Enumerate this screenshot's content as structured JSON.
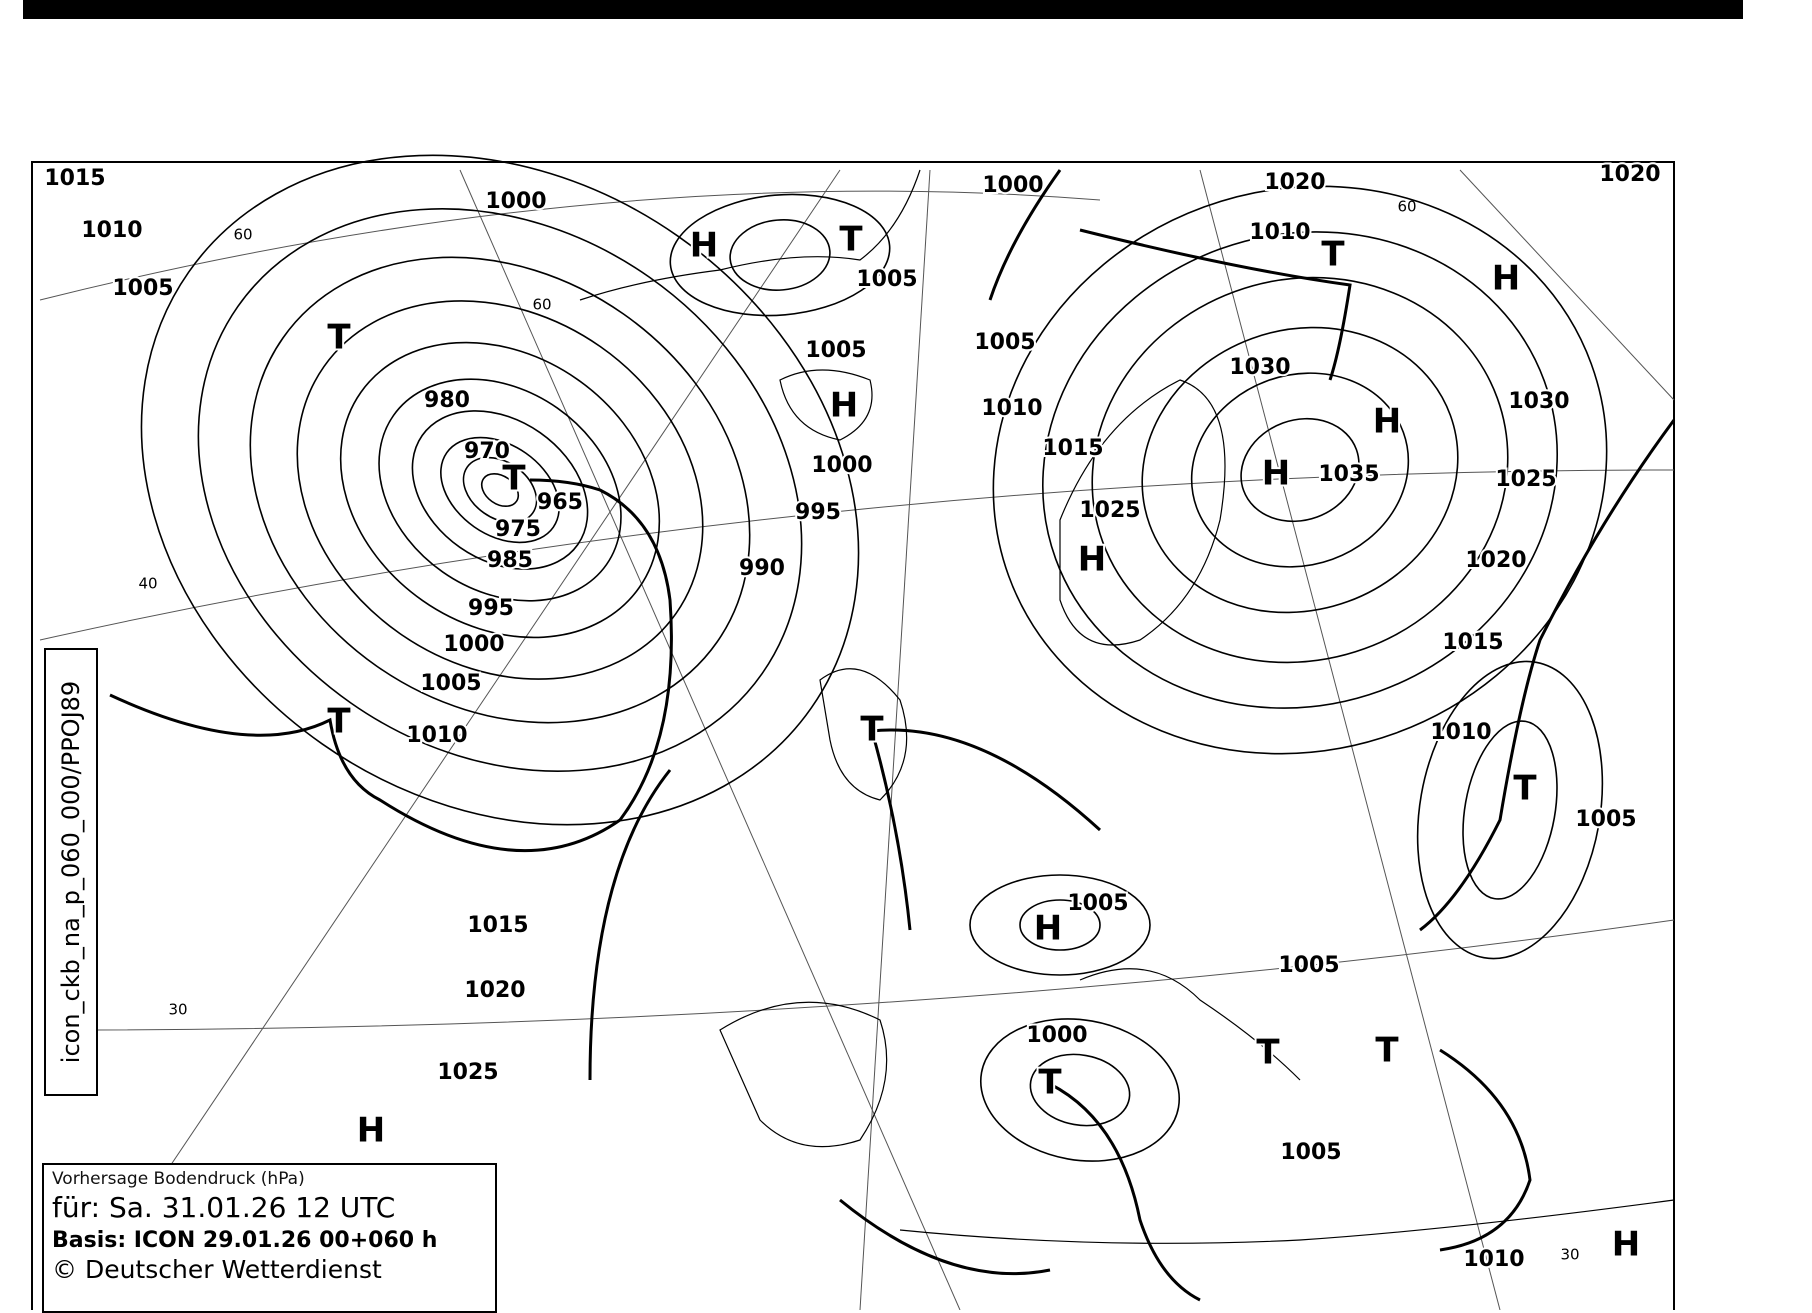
{
  "map": {
    "product_id": "icon_ckb_na_p_060_000/PPOJ89",
    "legend": {
      "title": "Vorhersage Bodendruck (hPa)",
      "valid": "für:  Sa. 31.01.26  12 UTC",
      "basis": "Basis: ICON  29.01.26 00+060 h",
      "copyright": "© Deutscher Wetterdienst"
    },
    "isobar_labels": [
      "1015",
      "1010",
      "1005",
      "1000",
      "980",
      "970",
      "965",
      "975",
      "985",
      "995",
      "1000",
      "1005",
      "1010",
      "1015",
      "1020",
      "1025",
      "990",
      "995",
      "1000",
      "1005",
      "1005",
      "1000",
      "1005",
      "1010",
      "1015",
      "1025",
      "1020",
      "1010",
      "1030",
      "1035",
      "1020",
      "1030",
      "1025",
      "1020",
      "1015",
      "1010",
      "1005",
      "1005",
      "1005",
      "1000",
      "1005",
      "1010"
    ],
    "pressure_systems": [
      "H",
      "H",
      "H",
      "H",
      "H",
      "H",
      "H",
      "H",
      "H",
      "T",
      "T",
      "T",
      "T",
      "T",
      "T",
      "T",
      "T",
      "T",
      "T"
    ],
    "latitude_labels": [
      "60",
      "60",
      "60",
      "40",
      "30",
      "30"
    ],
    "colors": {
      "lines": "#000000",
      "background": "#ffffff"
    }
  }
}
